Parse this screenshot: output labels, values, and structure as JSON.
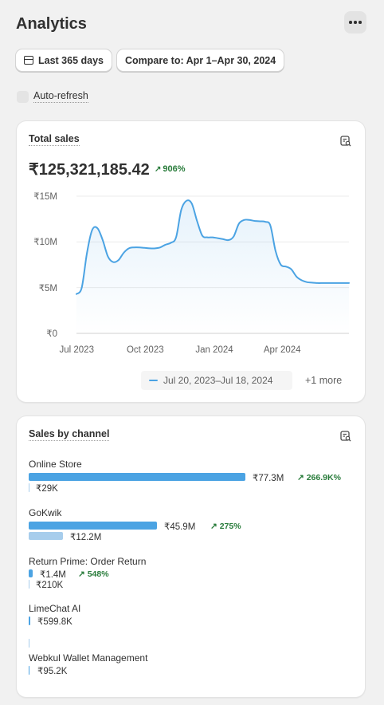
{
  "page": {
    "title": "Analytics"
  },
  "filters": {
    "date_range": "Last 365 days",
    "compare": "Compare to: Apr 1–Apr 30, 2024"
  },
  "auto_refresh": {
    "label": "Auto-refresh",
    "checked": false
  },
  "total_sales": {
    "title": "Total sales",
    "value": "₹125,321,185.42",
    "change": "906%",
    "change_direction": "up",
    "legend": "Jul 20, 2023–Jul 18, 2024",
    "more": "+1 more",
    "icon": "report-icon"
  },
  "chart_data": {
    "type": "area",
    "series": [
      {
        "name": "Jul 20, 2023–Jul 18, 2024",
        "color": "#4ba3e3",
        "x": [
          "2023-07-20",
          "2023-07-27",
          "2023-08-03",
          "2023-08-10",
          "2023-08-17",
          "2023-08-24",
          "2023-08-31",
          "2023-09-07",
          "2023-09-14",
          "2023-09-21",
          "2023-09-28",
          "2023-10-05",
          "2023-10-12",
          "2023-10-19",
          "2023-10-26",
          "2023-11-02",
          "2023-11-09",
          "2023-11-16",
          "2023-11-23",
          "2023-11-30",
          "2023-12-07",
          "2023-12-14",
          "2023-12-21",
          "2023-12-28",
          "2024-01-04",
          "2024-01-11",
          "2024-01-18",
          "2024-01-25",
          "2024-02-01",
          "2024-02-08",
          "2024-02-15",
          "2024-02-22",
          "2024-02-29",
          "2024-03-07",
          "2024-03-14",
          "2024-03-21",
          "2024-03-28",
          "2024-04-04",
          "2024-04-11",
          "2024-04-18",
          "2024-04-25",
          "2024-05-02",
          "2024-05-09",
          "2024-05-16",
          "2024-05-23",
          "2024-05-30",
          "2024-06-06",
          "2024-06-13",
          "2024-06-20",
          "2024-06-27",
          "2024-07-04",
          "2024-07-11",
          "2024-07-18"
        ],
        "y": [
          4.3,
          5.0,
          8.8,
          11.3,
          11.5,
          10.2,
          8.4,
          7.8,
          8.0,
          8.8,
          9.3,
          9.4,
          9.4,
          9.35,
          9.3,
          9.3,
          9.4,
          9.7,
          9.9,
          10.5,
          13.5,
          14.5,
          14.2,
          12.3,
          10.7,
          10.5,
          10.5,
          10.4,
          10.3,
          10.2,
          10.6,
          12.0,
          12.4,
          12.4,
          12.3,
          12.25,
          12.2,
          11.8,
          9.0,
          7.5,
          7.3,
          7.0,
          6.2,
          5.8,
          5.6,
          5.55,
          5.5,
          5.5,
          5.5,
          5.5,
          5.5,
          5.5,
          5.5
        ]
      }
    ],
    "y_unit": "₹",
    "y_ticks": [
      "₹0",
      "₹5M",
      "₹10M",
      "₹15M"
    ],
    "y_tick_values": [
      0,
      5,
      10,
      15
    ],
    "ylim": [
      0,
      15
    ],
    "x_ticks": [
      "Jul 2023",
      "Oct 2023",
      "Jan 2024",
      "Apr 2024"
    ],
    "x_tick_dates": [
      "2023-07-20",
      "2023-10-20",
      "2024-01-20",
      "2024-04-20"
    ],
    "grid": true,
    "legend_position": "bottom-center"
  },
  "sales_by_channel": {
    "title": "Sales by channel",
    "icon": "report-icon",
    "channels": [
      {
        "name": "Online Store",
        "value": "₹77.3M",
        "value_num": 77.3,
        "change": "266.9K%",
        "compare": "₹29K",
        "compare_num": 0.029
      },
      {
        "name": "GoKwik",
        "value": "₹45.9M",
        "value_num": 45.9,
        "change": "275%",
        "compare": "₹12.2M",
        "compare_num": 12.2
      },
      {
        "name": "Return Prime: Order Return",
        "value": "₹1.4M",
        "value_num": 1.4,
        "change": "548%",
        "compare": "₹210K",
        "compare_num": 0.21
      },
      {
        "name": "LimeChat AI",
        "value": "₹599.8K",
        "value_num": 0.5998,
        "change": "",
        "compare": "",
        "compare_num": 0
      },
      {
        "name": "Webkul Wallet Management",
        "value": "₹95.2K",
        "value_num": 0.0952,
        "change": "",
        "compare": "",
        "compare_num": 0
      }
    ]
  },
  "colors": {
    "primary": "#4ba3e3",
    "compare": "#a7cdec",
    "positive": "#297c3b"
  }
}
